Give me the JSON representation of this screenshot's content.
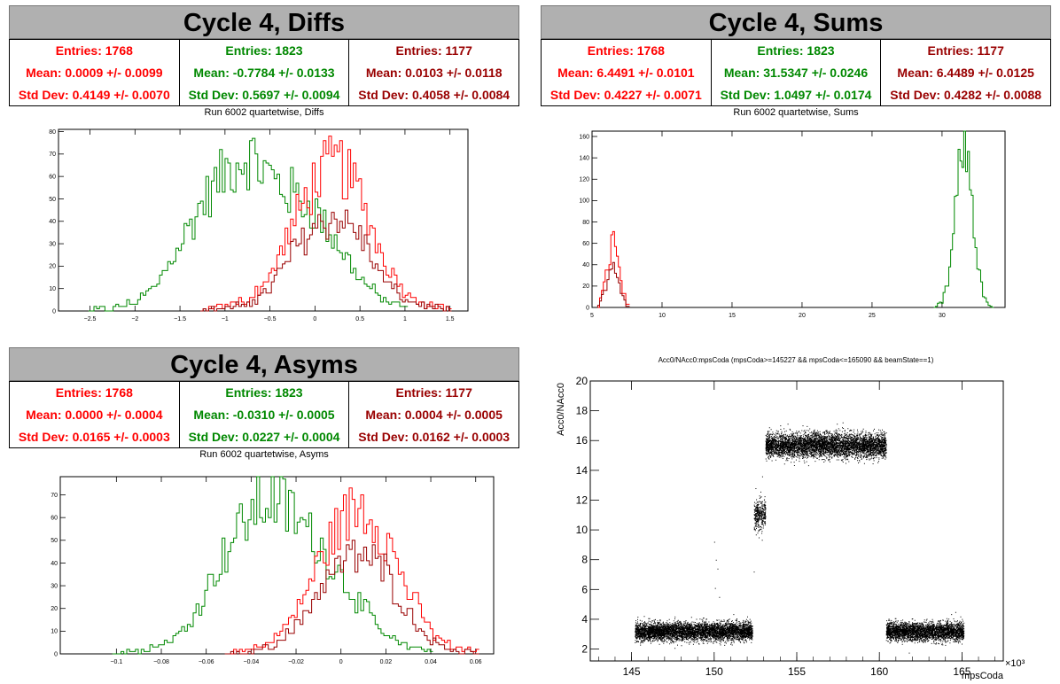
{
  "colors": {
    "red": "#ff0000",
    "green": "#008800",
    "darkred": "#990000"
  },
  "panels": {
    "diffs": {
      "header": "Cycle 4, Diffs",
      "stats": [
        {
          "entries": "Entries: 1768",
          "mean": "Mean: 0.0009 +/- 0.0099",
          "std": "Std Dev: 0.4149 +/- 0.0070"
        },
        {
          "entries": "Entries: 1823",
          "mean": "Mean: -0.7784 +/- 0.0133",
          "std": "Std Dev: 0.5697 +/- 0.0094"
        },
        {
          "entries": "Entries: 1177",
          "mean": "Mean: 0.0103 +/- 0.0118",
          "std": "Std Dev: 0.4058 +/- 0.0084"
        }
      ],
      "plot_title": "Run 6002 quartetwise, Diffs"
    },
    "sums": {
      "header": "Cycle 4, Sums",
      "stats": [
        {
          "entries": "Entries: 1768",
          "mean": "Mean: 6.4491 +/- 0.0101",
          "std": "Std Dev: 0.4227 +/- 0.0071"
        },
        {
          "entries": "Entries: 1823",
          "mean": "Mean: 31.5347 +/- 0.0246",
          "std": "Std Dev: 1.0497 +/- 0.0174"
        },
        {
          "entries": "Entries: 1177",
          "mean": "Mean: 6.4489 +/- 0.0125",
          "std": "Std Dev: 0.4282 +/- 0.0088"
        }
      ],
      "plot_title": "Run 6002 quartetwise, Sums"
    },
    "asyms": {
      "header": "Cycle 4, Asyms",
      "stats": [
        {
          "entries": "Entries: 1768",
          "mean": "Mean: 0.0000 +/- 0.0004",
          "std": "Std Dev: 0.0165 +/- 0.0003"
        },
        {
          "entries": "Entries: 1823",
          "mean": "Mean: -0.0310 +/- 0.0005",
          "std": "Std Dev: 0.0227 +/- 0.0004"
        },
        {
          "entries": "Entries: 1177",
          "mean": "Mean: 0.0004 +/- 0.0005",
          "std": "Std Dev: 0.0162 +/- 0.0003"
        }
      ],
      "plot_title": "Run 6002 quartetwise, Asyms"
    },
    "scatter": {
      "plot_title": "Acc0/NAcc0:mpsCoda (mpsCoda>=145227 && mpsCoda<=165090 && beamState==1)",
      "ylabel": "Acc0/NAcc0",
      "xlabel": "mpsCoda",
      "x_multiplier": "×10³"
    }
  },
  "chart_data": [
    {
      "type": "histogram",
      "title": "Run 6002 quartetwise, Diffs",
      "xlim": [
        -2.85,
        1.7
      ],
      "ylim": [
        0,
        81
      ],
      "xticks": [
        -2.5,
        -2,
        -1.5,
        -1,
        -0.5,
        0,
        0.5,
        1,
        1.5
      ],
      "yticks": [
        0,
        10,
        20,
        30,
        40,
        50,
        60,
        70,
        80
      ],
      "series": [
        {
          "color": "#008800",
          "x": [
            -2.5,
            -2.25,
            -2,
            -1.75,
            -1.5,
            -1.25,
            -1,
            -0.75,
            -0.5,
            -0.25,
            0,
            0.25,
            0.5,
            0.75,
            1
          ],
          "y": [
            0,
            1,
            4,
            12,
            30,
            48,
            62,
            70,
            60,
            52,
            45,
            30,
            15,
            5,
            1
          ]
        },
        {
          "color": "#ff0000",
          "x": [
            -1.25,
            -1,
            -0.75,
            -0.5,
            -0.25,
            0,
            0.25,
            0.5,
            0.75,
            1,
            1.25,
            1.5
          ],
          "y": [
            0,
            2,
            5,
            15,
            38,
            58,
            67,
            52,
            25,
            8,
            3,
            1
          ]
        },
        {
          "color": "#990000",
          "x": [
            -1.25,
            -1,
            -0.75,
            -0.5,
            -0.25,
            0,
            0.25,
            0.5,
            0.75,
            1,
            1.25,
            1.5
          ],
          "y": [
            0,
            1,
            3,
            10,
            26,
            38,
            42,
            34,
            15,
            5,
            2,
            0
          ]
        }
      ]
    },
    {
      "type": "histogram",
      "title": "Run 6002 quartetwise, Sums",
      "xlim": [
        5,
        34.5
      ],
      "ylim": [
        0,
        165
      ],
      "xticks": [
        5,
        10,
        15,
        20,
        25,
        30
      ],
      "yticks": [
        0,
        20,
        40,
        60,
        80,
        100,
        120,
        140,
        160
      ],
      "series": [
        {
          "color": "#008800",
          "x": [
            29.5,
            30,
            30.5,
            31,
            31.5,
            32,
            32.5,
            33,
            33.5
          ],
          "y": [
            1,
            5,
            28,
            95,
            158,
            125,
            45,
            8,
            1
          ]
        },
        {
          "color": "#ff0000",
          "x": [
            5.5,
            6,
            6.5,
            7,
            7.5
          ],
          "y": [
            1,
            30,
            68,
            28,
            2
          ]
        },
        {
          "color": "#990000",
          "x": [
            5.5,
            6,
            6.5,
            7,
            7.5
          ],
          "y": [
            1,
            20,
            48,
            20,
            1
          ]
        }
      ]
    },
    {
      "type": "histogram",
      "title": "Run 6002 quartetwise, Asyms",
      "xlim": [
        -0.125,
        0.068
      ],
      "ylim": [
        0,
        78
      ],
      "xticks": [
        -0.1,
        -0.08,
        -0.06,
        -0.04,
        -0.02,
        0,
        0.02,
        0.04,
        0.06
      ],
      "yticks": [
        0,
        10,
        20,
        30,
        40,
        50,
        60,
        70
      ],
      "series": [
        {
          "color": "#008800",
          "x": [
            -0.1,
            -0.09,
            -0.08,
            -0.07,
            -0.06,
            -0.05,
            -0.04,
            -0.03,
            -0.02,
            -0.01,
            0,
            0.01,
            0.02,
            0.03,
            0.04
          ],
          "y": [
            0,
            1,
            4,
            10,
            28,
            48,
            62,
            70,
            60,
            48,
            35,
            20,
            8,
            3,
            1
          ]
        },
        {
          "color": "#ff0000",
          "x": [
            -0.05,
            -0.04,
            -0.03,
            -0.02,
            -0.01,
            0,
            0.01,
            0.02,
            0.03,
            0.04,
            0.05,
            0.06
          ],
          "y": [
            0,
            2,
            6,
            18,
            40,
            58,
            66,
            52,
            28,
            10,
            3,
            1
          ]
        },
        {
          "color": "#990000",
          "x": [
            -0.05,
            -0.04,
            -0.03,
            -0.02,
            -0.01,
            0,
            0.01,
            0.02,
            0.03,
            0.04,
            0.05,
            0.06
          ],
          "y": [
            0,
            1,
            4,
            12,
            28,
            40,
            44,
            36,
            18,
            6,
            2,
            0
          ]
        }
      ]
    },
    {
      "type": "scatter",
      "title": "Acc0/NAcc0:mpsCoda (mpsCoda>=145227 && mpsCoda<=165090 && beamState==1)",
      "xlabel": "mpsCoda",
      "ylabel": "Acc0/NAcc0",
      "xlim": [
        142.5,
        167.5
      ],
      "ylim": [
        1.2,
        20
      ],
      "xticks": [
        145,
        150,
        155,
        160,
        165
      ],
      "yticks": [
        2,
        4,
        6,
        8,
        10,
        12,
        14,
        16,
        18,
        20
      ],
      "clusters": [
        {
          "x": [
            145.2,
            152.3
          ],
          "y_center": 3.2,
          "y_spread": 0.6,
          "n": 5000
        },
        {
          "x": [
            152.4,
            153.1
          ],
          "y_center": 11.0,
          "y_spread": 1.0,
          "n": 350
        },
        {
          "x": [
            153.1,
            160.4
          ],
          "y_center": 15.7,
          "y_spread": 0.8,
          "n": 5200
        },
        {
          "x": [
            160.4,
            165.1
          ],
          "y_center": 3.2,
          "y_spread": 0.6,
          "n": 3200
        }
      ],
      "color": "#000000"
    }
  ]
}
